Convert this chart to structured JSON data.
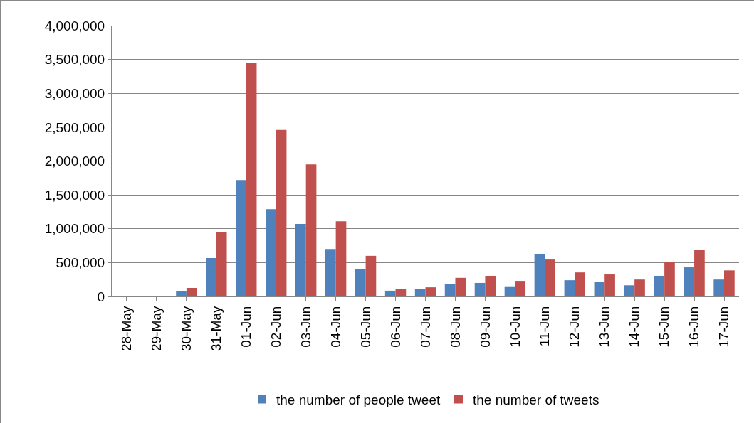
{
  "chart_data": {
    "type": "bar",
    "categories": [
      "28-May",
      "29-May",
      "30-May",
      "31-May",
      "01-Jun",
      "02-Jun",
      "03-Jun",
      "04-Jun",
      "05-Jun",
      "06-Jun",
      "07-Jun",
      "08-Jun",
      "09-Jun",
      "10-Jun",
      "11-Jun",
      "12-Jun",
      "13-Jun",
      "14-Jun",
      "15-Jun",
      "16-Jun",
      "17-Jun"
    ],
    "series": [
      {
        "name": "the number of people tweet",
        "color": "#4f81bd",
        "values": [
          null,
          null,
          84000,
          567000,
          1720000,
          1290000,
          1070000,
          700000,
          400000,
          85000,
          105000,
          180000,
          200000,
          150000,
          630000,
          240000,
          210000,
          165000,
          305000,
          430000,
          250000
        ]
      },
      {
        "name": "the number of tweets",
        "color": "#c0504d",
        "values": [
          null,
          null,
          126000,
          955000,
          3450000,
          2460000,
          1950000,
          1110000,
          600000,
          105000,
          135000,
          275000,
          305000,
          230000,
          545000,
          355000,
          325000,
          250000,
          505000,
          690000,
          385000
        ]
      }
    ],
    "ylim": [
      0,
      4000000
    ],
    "yticks": [
      {
        "value": 0,
        "label": "0"
      },
      {
        "value": 500000,
        "label": "500,000"
      },
      {
        "value": 1000000,
        "label": "1,000,000"
      },
      {
        "value": 1500000,
        "label": "1,500,000"
      },
      {
        "value": 2000000,
        "label": "2,000,000"
      },
      {
        "value": 2500000,
        "label": "2,500,000"
      },
      {
        "value": 3000000,
        "label": "3,000,000"
      },
      {
        "value": 3500000,
        "label": "3,500,000"
      },
      {
        "value": 4000000,
        "label": "4,000,000"
      }
    ],
    "grid": "y",
    "legend": "bottom"
  }
}
